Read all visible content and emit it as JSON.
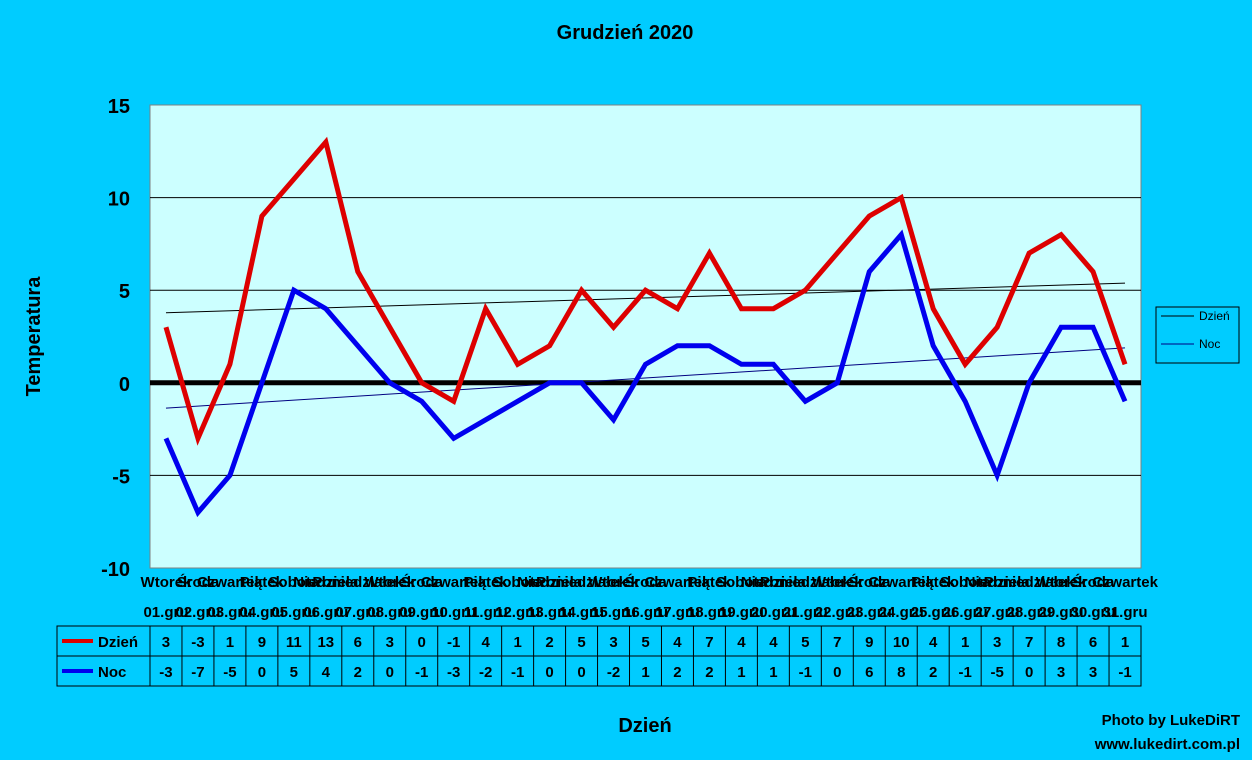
{
  "chart_data": {
    "type": "line",
    "title": "Grudzień 2020",
    "xlabel": "Dzień",
    "ylabel": "Temperatura",
    "ylim": [
      -10,
      15
    ],
    "yticks": [
      15,
      10,
      5,
      0,
      -5,
      -10
    ],
    "grid": true,
    "legend": "right",
    "weekdays": [
      "Wtorek",
      "Środa",
      "Czwartek",
      "Piątek",
      "Sobota",
      "Niedziela",
      "Poniedziałek",
      "Wtorek",
      "Środa",
      "Czwartek",
      "Piątek",
      "Sobota",
      "Niedziela",
      "Poniedziałek",
      "Wtorek",
      "Środa",
      "Czwartek",
      "Piątek",
      "Sobota",
      "Niedziela",
      "Poniedziałek",
      "Wtorek",
      "Środa",
      "Czwartek",
      "Piątek",
      "Sobota",
      "Niedziela",
      "Poniedziałek",
      "Wtorek",
      "Środa",
      "Czwartek"
    ],
    "categories": [
      "01.gru",
      "02.gru",
      "03.gru",
      "04.gru",
      "05.gru",
      "06.gru",
      "07.gru",
      "08.gru",
      "09.gru",
      "10.gru",
      "11.gru",
      "12.gru",
      "13.gru",
      "14.gru",
      "15.gru",
      "16.gru",
      "17.gru",
      "18.gru",
      "19.gru",
      "20.gru",
      "21.gru",
      "22.gru",
      "23.gru",
      "24.gru",
      "25.gru",
      "26.gru",
      "27.gru",
      "28.gru",
      "29.gru",
      "30.gru",
      "31.gru"
    ],
    "series": [
      {
        "name": "Dzień",
        "color": "#dd0000",
        "values": [
          3,
          -3,
          1,
          9,
          11,
          13,
          6,
          3,
          0,
          -1,
          4,
          1,
          2,
          5,
          3,
          5,
          4,
          7,
          4,
          4,
          5,
          7,
          9,
          10,
          4,
          1,
          3,
          7,
          8,
          6,
          1
        ]
      },
      {
        "name": "Noc",
        "color": "#0000ee",
        "values": [
          -3,
          -7,
          -5,
          0,
          5,
          4,
          2,
          0,
          -1,
          -3,
          -2,
          -1,
          0,
          0,
          -2,
          1,
          2,
          2,
          1,
          1,
          -1,
          0,
          6,
          8,
          2,
          -1,
          -5,
          0,
          3,
          3,
          -1
        ]
      }
    ],
    "trendlines": [
      {
        "name": "Dzień",
        "color": "#000000"
      },
      {
        "name": "Noc",
        "color": "#000080"
      }
    ],
    "plot_background": "#ccffff"
  },
  "credits": {
    "line1": "Photo by LukeDiRT",
    "line2": "www.lukedirt.com.pl"
  }
}
